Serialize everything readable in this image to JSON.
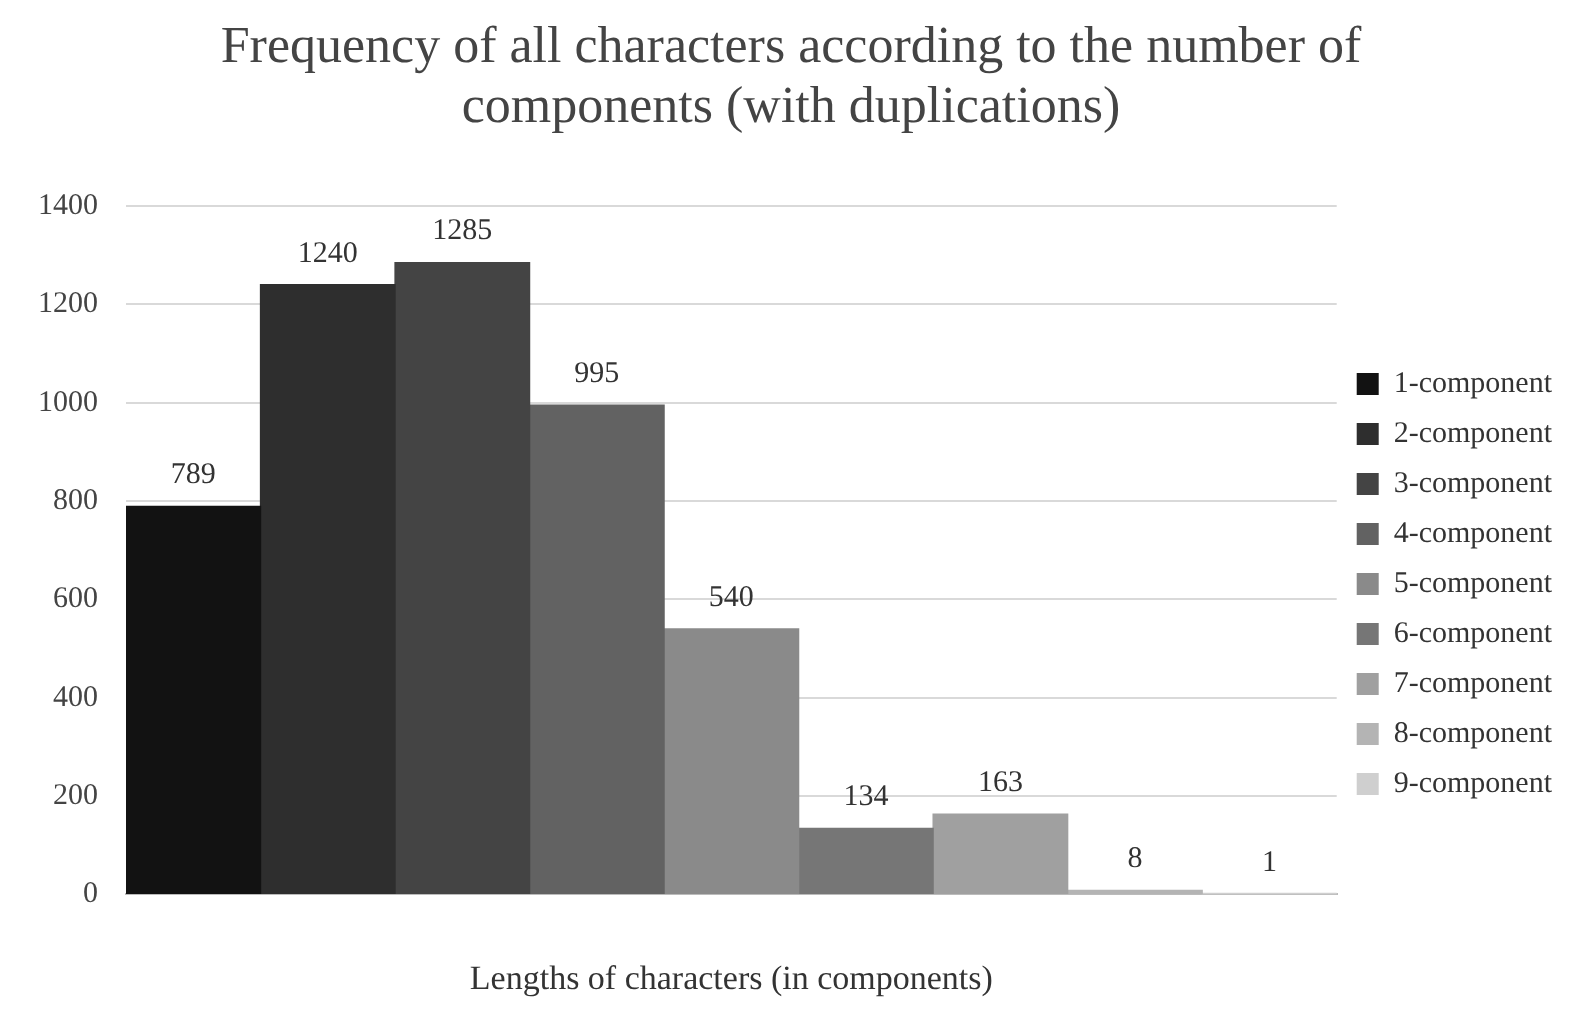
{
  "chart_data": {
    "type": "bar",
    "title": "Frequency of all characters according to the number of components (with duplications)",
    "xlabel": "Lengths of characters (in components)",
    "categories": [
      null
    ],
    "series": [
      {
        "name": "1-component",
        "color": "#121212",
        "values": [
          789
        ]
      },
      {
        "name": "2-component",
        "color": "#2e2e2e",
        "values": [
          1240
        ]
      },
      {
        "name": "3-component",
        "color": "#444444",
        "values": [
          1285
        ]
      },
      {
        "name": "4-component",
        "color": "#626262",
        "values": [
          995
        ]
      },
      {
        "name": "5-component",
        "color": "#8a8a8a",
        "values": [
          540
        ]
      },
      {
        "name": "6-component",
        "color": "#767676",
        "values": [
          134
        ]
      },
      {
        "name": "7-component",
        "color": "#a0a0a0",
        "values": [
          163
        ]
      },
      {
        "name": "8-component",
        "color": "#b4b4b4",
        "values": [
          8
        ]
      },
      {
        "name": "9-component",
        "color": "#cfcfcf",
        "values": [
          1
        ]
      }
    ],
    "ylim": [
      0,
      1400
    ],
    "yticks": [
      0,
      200,
      400,
      600,
      800,
      1000,
      1200,
      1400
    ],
    "grid": "y",
    "legend": "right",
    "data_labels": true
  }
}
